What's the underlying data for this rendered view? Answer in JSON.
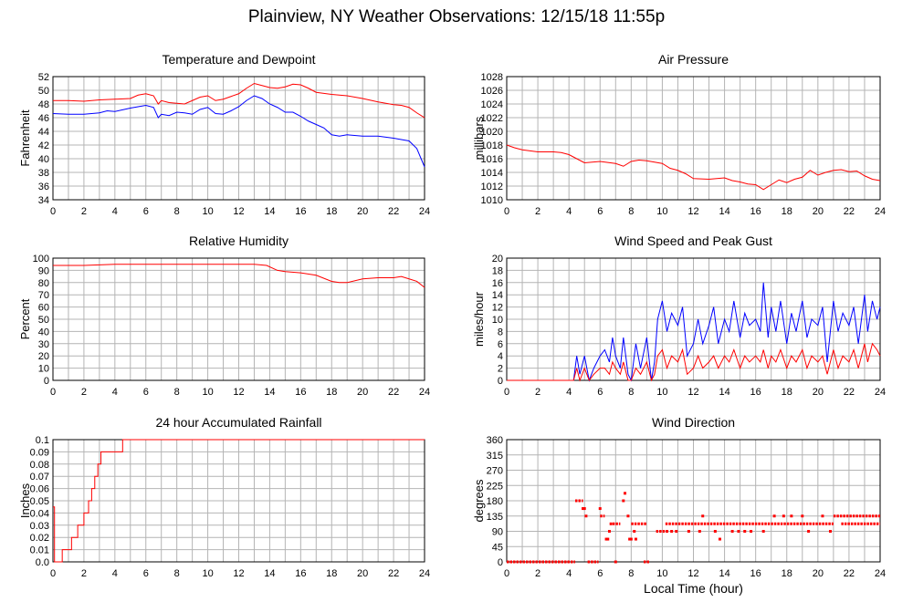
{
  "page_title": "Plainview, NY Weather Observations: 12/15/18 11:55p",
  "x_axis_label": "Local Time (hour)",
  "chart_data": [
    {
      "id": "temp",
      "type": "line",
      "title": "Temperature and Dewpoint",
      "ylabel": "Fahrenheit",
      "xlim": [
        0,
        24
      ],
      "ylim": [
        34,
        52
      ],
      "yticks": [
        34,
        36,
        38,
        40,
        42,
        44,
        46,
        48,
        50,
        52
      ],
      "xticks": [
        0,
        2,
        4,
        6,
        8,
        10,
        12,
        14,
        16,
        18,
        20,
        22,
        24
      ],
      "grid": true,
      "series": [
        {
          "color": "#ff0000",
          "x": [
            0,
            1,
            2,
            3,
            4,
            5,
            5.5,
            6,
            6.5,
            6.8,
            7,
            7.5,
            8,
            8.5,
            9,
            9.5,
            10,
            10.5,
            11,
            12,
            12.5,
            13,
            13.5,
            14,
            14.5,
            15,
            15.5,
            16,
            16.5,
            17,
            18,
            19,
            20,
            21,
            22,
            22.5,
            23,
            23.5,
            24
          ],
          "y": [
            48.5,
            48.5,
            48.4,
            48.6,
            48.7,
            48.8,
            49.3,
            49.5,
            49.2,
            48.0,
            48.5,
            48.2,
            48.1,
            48.0,
            48.5,
            49.0,
            49.2,
            48.5,
            48.7,
            49.5,
            50.3,
            51.0,
            50.7,
            50.4,
            50.3,
            50.5,
            50.9,
            50.8,
            50.3,
            49.7,
            49.4,
            49.2,
            48.8,
            48.3,
            47.9,
            47.8,
            47.5,
            46.7,
            46.0
          ]
        },
        {
          "color": "#0000ff",
          "x": [
            0,
            1,
            2,
            3,
            3.5,
            4,
            5,
            5.5,
            6,
            6.5,
            6.8,
            7,
            7.5,
            8,
            8.5,
            9,
            9.5,
            10,
            10.5,
            11,
            11.5,
            12,
            12.5,
            13,
            13.5,
            14,
            14.5,
            15,
            15.5,
            16,
            16.5,
            17,
            17.5,
            18,
            18.5,
            19,
            20,
            21,
            22,
            22.5,
            23,
            23.5,
            24
          ],
          "y": [
            46.6,
            46.5,
            46.5,
            46.7,
            47.0,
            46.9,
            47.4,
            47.6,
            47.8,
            47.5,
            46.0,
            46.5,
            46.3,
            46.8,
            46.7,
            46.5,
            47.2,
            47.5,
            46.6,
            46.5,
            47.0,
            47.6,
            48.5,
            49.2,
            48.8,
            48.0,
            47.5,
            46.8,
            46.8,
            46.2,
            45.5,
            45.0,
            44.5,
            43.5,
            43.3,
            43.5,
            43.3,
            43.3,
            43.0,
            42.8,
            42.6,
            41.5,
            38.8
          ]
        }
      ]
    },
    {
      "id": "pressure",
      "type": "line",
      "title": "Air Pressure",
      "ylabel": "millibars",
      "xlim": [
        0,
        24
      ],
      "ylim": [
        1010,
        1028
      ],
      "yticks": [
        1010,
        1012,
        1014,
        1016,
        1018,
        1020,
        1022,
        1024,
        1026,
        1028
      ],
      "xticks": [
        0,
        2,
        4,
        6,
        8,
        10,
        12,
        14,
        16,
        18,
        20,
        22,
        24
      ],
      "grid": true,
      "series": [
        {
          "color": "#ff0000",
          "x": [
            0,
            0.5,
            1,
            2,
            3,
            3.5,
            4,
            4.5,
            5,
            6,
            7,
            7.5,
            8,
            8.5,
            9,
            10,
            10.5,
            11,
            11.5,
            12,
            13,
            14,
            14.5,
            15,
            15.5,
            16,
            16.5,
            17,
            17.5,
            18,
            18.5,
            19,
            19.5,
            20,
            20.5,
            21,
            21.5,
            22,
            22.5,
            23,
            23.5,
            24
          ],
          "y": [
            1018.0,
            1017.6,
            1017.3,
            1017.0,
            1017.0,
            1016.9,
            1016.6,
            1016.0,
            1015.4,
            1015.6,
            1015.3,
            1014.9,
            1015.6,
            1015.8,
            1015.7,
            1015.3,
            1014.6,
            1014.3,
            1013.8,
            1013.1,
            1013.0,
            1013.2,
            1012.8,
            1012.6,
            1012.3,
            1012.2,
            1011.5,
            1012.2,
            1012.9,
            1012.5,
            1013.0,
            1013.3,
            1014.3,
            1013.6,
            1014.0,
            1014.3,
            1014.4,
            1014.1,
            1014.2,
            1013.5,
            1013.0,
            1012.8
          ]
        }
      ]
    },
    {
      "id": "humidity",
      "type": "line",
      "title": "Relative Humidity",
      "ylabel": "Percent",
      "xlim": [
        0,
        24
      ],
      "ylim": [
        0,
        100
      ],
      "yticks": [
        0,
        10,
        20,
        30,
        40,
        50,
        60,
        70,
        80,
        90,
        100
      ],
      "xticks": [
        0,
        2,
        4,
        6,
        8,
        10,
        12,
        14,
        16,
        18,
        20,
        22,
        24
      ],
      "grid": true,
      "series": [
        {
          "color": "#ff0000",
          "x": [
            0,
            2,
            4,
            6,
            8,
            10,
            12,
            13,
            13.8,
            14.5,
            15,
            16,
            17,
            18,
            18.5,
            19,
            20,
            21,
            22,
            22.5,
            23,
            23.5,
            24
          ],
          "y": [
            94,
            94,
            95,
            95,
            95,
            95,
            95,
            95,
            94,
            90,
            89,
            88,
            86,
            81,
            80,
            80,
            83,
            84,
            84,
            85,
            83,
            81,
            76
          ]
        }
      ]
    },
    {
      "id": "wind",
      "type": "line",
      "title": "Wind Speed and Peak Gust",
      "ylabel": "miles/hour",
      "xlim": [
        0,
        24
      ],
      "ylim": [
        0,
        20
      ],
      "yticks": [
        0,
        2,
        4,
        6,
        8,
        10,
        12,
        14,
        16,
        18,
        20
      ],
      "xticks": [
        0,
        2,
        4,
        6,
        8,
        10,
        12,
        14,
        16,
        18,
        20,
        22,
        24
      ],
      "grid": true,
      "series": [
        {
          "color": "#0000ff",
          "x": [
            0,
            4.3,
            4.5,
            4.7,
            5,
            5.3,
            5.6,
            6,
            6.3,
            6.6,
            6.8,
            7,
            7.3,
            7.5,
            7.8,
            8,
            8.3,
            8.6,
            9,
            9.3,
            9.5,
            9.7,
            10,
            10.3,
            10.6,
            11,
            11.3,
            11.6,
            12,
            12.3,
            12.6,
            13,
            13.3,
            13.6,
            14,
            14.3,
            14.6,
            15,
            15.3,
            15.6,
            16,
            16.3,
            16.5,
            16.8,
            17,
            17.3,
            17.6,
            18,
            18.3,
            18.6,
            19,
            19.3,
            19.6,
            20,
            20.3,
            20.6,
            21,
            21.3,
            21.6,
            22,
            22.3,
            22.6,
            23,
            23.2,
            23.5,
            23.8,
            24
          ],
          "y": [
            0,
            0,
            4,
            1,
            4,
            0,
            2,
            4,
            5,
            3,
            7,
            4,
            2,
            7,
            1,
            0,
            6,
            2,
            7,
            0,
            3,
            10,
            13,
            8,
            11,
            9,
            12,
            4,
            6,
            10,
            6,
            9,
            12,
            6,
            10,
            8,
            13,
            7,
            11,
            9,
            10,
            8,
            16,
            7,
            12,
            8,
            13,
            6,
            11,
            8,
            13,
            7,
            10,
            9,
            12,
            3,
            13,
            8,
            11,
            9,
            12,
            6,
            14,
            8,
            13,
            10,
            12
          ]
        },
        {
          "color": "#ff0000",
          "x": [
            0,
            4.3,
            4.5,
            4.7,
            5,
            5.3,
            5.6,
            6,
            6.3,
            6.6,
            6.8,
            7,
            7.3,
            7.5,
            7.8,
            8,
            8.3,
            8.6,
            9,
            9.3,
            9.5,
            9.7,
            10,
            10.3,
            10.6,
            11,
            11.3,
            11.6,
            12,
            12.3,
            12.6,
            13,
            13.3,
            13.6,
            14,
            14.3,
            14.6,
            15,
            15.3,
            15.6,
            16,
            16.3,
            16.5,
            16.8,
            17,
            17.3,
            17.6,
            18,
            18.3,
            18.6,
            19,
            19.3,
            19.6,
            20,
            20.3,
            20.6,
            21,
            21.3,
            21.6,
            22,
            22.3,
            22.6,
            23,
            23.2,
            23.5,
            23.8,
            24
          ],
          "y": [
            0,
            0,
            2,
            0,
            2,
            0,
            1,
            2,
            2,
            1,
            3,
            2,
            1,
            3,
            0,
            0,
            2,
            1,
            3,
            0,
            1,
            4,
            5,
            2,
            4,
            3,
            5,
            1,
            2,
            4,
            2,
            3,
            4,
            2,
            4,
            3,
            5,
            2,
            4,
            3,
            4,
            3,
            5,
            2,
            4,
            3,
            5,
            2,
            4,
            3,
            5,
            2,
            4,
            3,
            4,
            1,
            5,
            2,
            4,
            3,
            5,
            2,
            6,
            3,
            6,
            5,
            4
          ]
        }
      ]
    },
    {
      "id": "rain",
      "type": "line",
      "title": "24 hour Accumulated Rainfall",
      "ylabel": "Inches",
      "xlim": [
        0,
        24
      ],
      "ylim": [
        0,
        0.1
      ],
      "yticks": [
        0.0,
        0.01,
        0.02,
        0.03,
        0.04,
        0.05,
        0.06,
        0.07,
        0.08,
        0.09,
        0.1
      ],
      "xticks": [
        0,
        2,
        4,
        6,
        8,
        10,
        12,
        14,
        16,
        18,
        20,
        22,
        24
      ],
      "grid": true,
      "series": [
        {
          "color": "#ff0000",
          "step": true,
          "x": [
            0,
            0.1,
            0.3,
            0.6,
            1.2,
            1.6,
            2.0,
            2.3,
            2.5,
            2.7,
            2.9,
            3.1,
            3.4,
            3.7,
            3.9,
            4.2,
            4.5,
            24
          ],
          "y": [
            0.045,
            0.0,
            0.0,
            0.01,
            0.02,
            0.03,
            0.04,
            0.05,
            0.06,
            0.07,
            0.08,
            0.09,
            0.09,
            0.09,
            0.09,
            0.09,
            0.1,
            0.1
          ]
        }
      ]
    },
    {
      "id": "direction",
      "type": "scatter",
      "title": "Wind Direction",
      "ylabel": "degrees",
      "xlabel": "Local Time (hour)",
      "xlim": [
        0,
        24
      ],
      "ylim": [
        0,
        360
      ],
      "yticks": [
        0,
        45,
        90,
        135,
        180,
        225,
        270,
        315,
        360
      ],
      "xticks": [
        0,
        2,
        4,
        6,
        8,
        10,
        12,
        14,
        16,
        18,
        20,
        22,
        24
      ],
      "grid": true,
      "series": [
        {
          "color": "#ff0000",
          "runs": [
            {
              "x0": 0,
              "x1": 4.4,
              "y": 0
            },
            {
              "x0": 4.4,
              "x1": 4.9,
              "y": 180
            },
            {
              "x0": 5.2,
              "x1": 5.9,
              "y": 0
            },
            {
              "x0": 6.0,
              "x1": 6.3,
              "y": 135
            },
            {
              "x0": 6.8,
              "x1": 7.3,
              "y": 112
            },
            {
              "x0": 8.0,
              "x1": 9.0,
              "y": 112
            },
            {
              "x0": 8.8,
              "x1": 9.2,
              "y": 0
            },
            {
              "x0": 9.6,
              "x1": 10.2,
              "y": 90
            },
            {
              "x0": 10.2,
              "x1": 21.0,
              "y": 112
            },
            {
              "x0": 21.0,
              "x1": 24.0,
              "y": 135
            },
            {
              "x0": 21.5,
              "x1": 24.0,
              "y": 112
            }
          ],
          "x": [
            4.9,
            5.0,
            5.1,
            6.0,
            6.4,
            6.5,
            6.6,
            6.7,
            7.5,
            7.6,
            7.8,
            7.9,
            8.0,
            8.2,
            8.3,
            7.0,
            10.3,
            10.6,
            10.9,
            11.7,
            12.4,
            12.6,
            13.4,
            13.7,
            14.5,
            14.9,
            15.3,
            15.7,
            16.5,
            17.2,
            17.8,
            18.3,
            19.4,
            19.0,
            20.8,
            20.3
          ],
          "y": [
            157,
            157,
            135,
            157,
            67,
            67,
            90,
            112,
            180,
            202,
            135,
            67,
            67,
            90,
            67,
            0,
            90,
            90,
            90,
            90,
            90,
            135,
            90,
            67,
            90,
            90,
            90,
            90,
            90,
            135,
            135,
            135,
            90,
            135,
            90,
            135
          ]
        }
      ]
    }
  ]
}
